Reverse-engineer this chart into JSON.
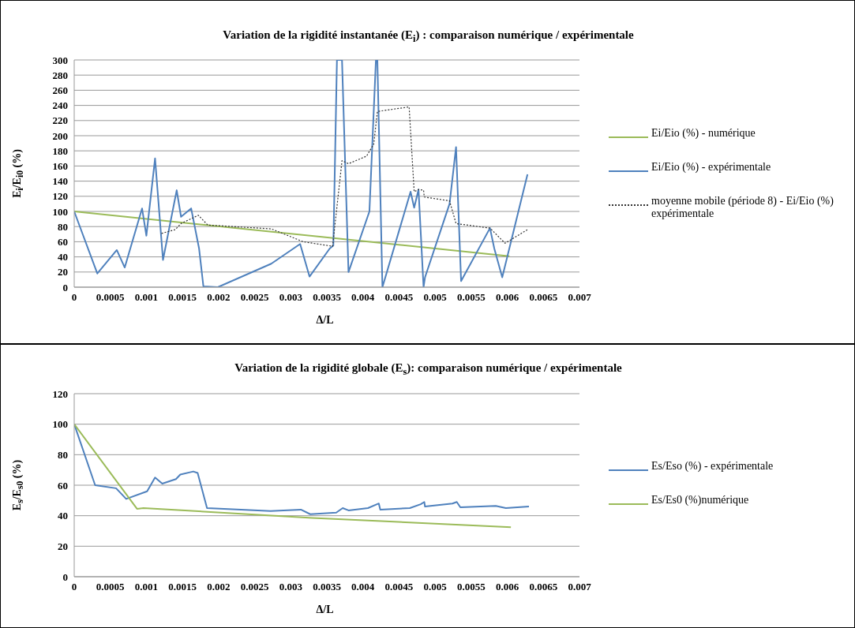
{
  "chart_data": [
    {
      "type": "line",
      "title": "Variation de la rigidité instantanée (E$_{i}$) : comparaison numérique / expérimentale",
      "xlabel": "Δ/L",
      "ylabel": "E$_{i}$/E$_{i0}$ (%)",
      "xlim": [
        0,
        0.007
      ],
      "xticks": [
        0,
        0.0005,
        0.001,
        0.0015,
        0.002,
        0.0025,
        0.003,
        0.0035,
        0.004,
        0.0045,
        0.005,
        0.0055,
        0.006,
        0.0065,
        0.007
      ],
      "ylim": [
        0,
        300
      ],
      "yticks": [
        0,
        20,
        40,
        60,
        80,
        100,
        120,
        140,
        160,
        180,
        200,
        220,
        240,
        260,
        280,
        300
      ],
      "grid": "y",
      "legend": "right",
      "marker": "none",
      "series": [
        {
          "name": "Ei/Eio (%) - numérique",
          "color": "#9bbb59",
          "line_style": "solid",
          "x": [
            0,
            0.00603
          ],
          "values": [
            100,
            41
          ]
        },
        {
          "name": "Ei/Eio (%) - expérimentale",
          "color": "#4f81bd",
          "line_style": "solid",
          "x": [
            0,
            0.00032,
            0.00059,
            0.0007,
            0.00094,
            0.001,
            0.00112,
            0.00123,
            0.00142,
            0.00148,
            0.00162,
            0.00173,
            0.00179,
            0.00199,
            0.00273,
            0.00313,
            0.00326,
            0.00354,
            0.00359,
            0.00364,
            0.00371,
            0.0038,
            0.00409,
            0.00418,
            0.0042,
            0.00427,
            0.00466,
            0.00471,
            0.00477,
            0.00484,
            0.00486,
            0.0052,
            0.00529,
            0.00536,
            0.00576,
            0.00582,
            0.00593,
            0.00628
          ],
          "values": [
            100,
            18,
            49,
            26,
            104,
            68,
            170,
            36,
            128,
            93,
            104,
            51,
            1,
            0,
            31,
            57,
            14,
            51,
            55,
            300,
            300,
            20,
            100,
            300,
            300,
            0,
            126,
            105,
            129,
            0,
            13,
            110,
            185,
            8,
            78,
            51,
            13,
            149
          ]
        },
        {
          "name": "moyenne mobile (période 8) - Ei/Eio (%) expérimentale",
          "color": "#333333",
          "line_style": "dotted",
          "x": [
            0.00121,
            0.0014,
            0.00148,
            0.00172,
            0.00185,
            0.00273,
            0.00317,
            0.00358,
            0.00371,
            0.0038,
            0.00405,
            0.00415,
            0.0042,
            0.00464,
            0.00471,
            0.00477,
            0.00484,
            0.00485,
            0.0052,
            0.00529,
            0.00576,
            0.00597,
            0.00628
          ],
          "values": [
            71,
            76,
            84,
            95,
            82,
            77,
            60,
            54,
            167,
            163,
            173,
            189,
            232,
            238,
            126,
            129,
            128,
            119,
            114,
            84,
            78,
            58,
            76
          ]
        }
      ]
    },
    {
      "type": "line",
      "title": "Variation de la rigidité globale (E$_{s}$): comparaison numérique / expérimentale",
      "xlabel": "Δ/L",
      "ylabel": "E$_{s}$/E$_{s0}$ (%)",
      "xlim": [
        0,
        0.007
      ],
      "xticks": [
        0,
        0.0005,
        0.001,
        0.0015,
        0.002,
        0.0025,
        0.003,
        0.0035,
        0.004,
        0.0045,
        0.005,
        0.0055,
        0.006,
        0.0065,
        0.007
      ],
      "ylim": [
        0,
        120
      ],
      "yticks": [
        0,
        20,
        40,
        60,
        80,
        100,
        120
      ],
      "grid": "y",
      "legend": "right",
      "marker": "none",
      "series": [
        {
          "name": "Es/Eso (%) - expérimentale",
          "color": "#4f81bd",
          "line_style": "solid",
          "x": [
            0,
            0.00029,
            0.00058,
            0.00072,
            0.00101,
            0.00112,
            0.00122,
            0.00141,
            0.00147,
            0.00165,
            0.00171,
            0.00184,
            0.00272,
            0.00314,
            0.00327,
            0.00363,
            0.00372,
            0.0038,
            0.00407,
            0.00422,
            0.00424,
            0.00465,
            0.0048,
            0.00485,
            0.00486,
            0.00524,
            0.0053,
            0.00535,
            0.00584,
            0.00598,
            0.0063
          ],
          "values": [
            100,
            60,
            58,
            51,
            56,
            65,
            61,
            64,
            67,
            69,
            68,
            45,
            43,
            44,
            41,
            42,
            45,
            43.5,
            45,
            48,
            44,
            45,
            47.5,
            49,
            46,
            48,
            49,
            45.5,
            46.4,
            45,
            46
          ]
        },
        {
          "name": "Es/Es0 (%)numérique",
          "color": "#9bbb59",
          "line_style": "solid",
          "x": [
            0,
            0.00087,
            0.00096,
            0.0033,
            0.00605
          ],
          "values": [
            100,
            44.5,
            45,
            38.5,
            32.5
          ]
        }
      ]
    }
  ]
}
